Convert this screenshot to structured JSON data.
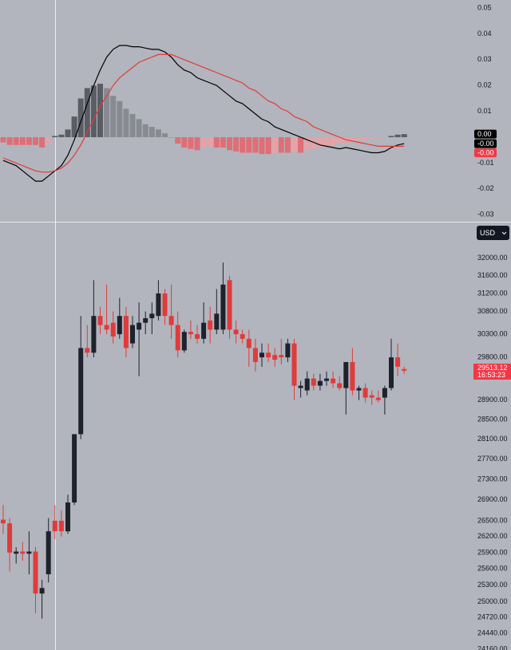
{
  "chart_data": [
    {
      "type": "macd",
      "ylim": [
        -0.0327,
        0.0531
      ],
      "yticks": [
        0.05,
        0.04,
        0.03,
        0.02,
        0.01,
        -0.01,
        -0.02,
        -0.03
      ],
      "histogram": {
        "values": [
          -0.002,
          -0.003,
          -0.003,
          -0.003,
          -0.003,
          -0.003,
          -0.004,
          -0.002,
          0.0005,
          0.001,
          0.003,
          0.008,
          0.015,
          0.019,
          0.02,
          0.0207,
          0.019,
          0.016,
          0.014,
          0.011,
          0.009,
          0.007,
          0.005,
          0.004,
          0.003,
          0.0015,
          0,
          -0.0025,
          -0.004,
          -0.0045,
          -0.005,
          -0.004,
          -0.0035,
          -0.004,
          -0.004,
          -0.005,
          -0.0055,
          -0.006,
          -0.006,
          -0.006,
          -0.0065,
          -0.0065,
          -0.006,
          -0.006,
          -0.006,
          -0.0055,
          -0.006,
          -0.005,
          -0.0045,
          -0.004,
          -0.0035,
          -0.003,
          -0.0025,
          -0.002,
          -0.0015,
          -0.0012,
          -0.001,
          -0.0008,
          -0.0005,
          -0.0003,
          0.0005,
          0.001,
          0.0012
        ],
        "colors": {
          "rising_above": "#5a5d64",
          "falling_above": "#878a91",
          "falling_below": "#df6e77",
          "rising_below": "#e6a2a7"
        }
      },
      "series": [
        {
          "color": "#000000",
          "values": [
            -0.009,
            -0.01,
            -0.011,
            -0.013,
            -0.015,
            -0.017,
            -0.017,
            -0.015,
            -0.013,
            -0.011,
            -0.007,
            -0.001,
            0.006,
            0.013,
            0.02,
            0.026,
            0.031,
            0.034,
            0.0355,
            0.0355,
            0.035,
            0.035,
            0.0345,
            0.034,
            0.034,
            0.033,
            0.031,
            0.028,
            0.026,
            0.025,
            0.023,
            0.022,
            0.021,
            0.02,
            0.018,
            0.016,
            0.014,
            0.013,
            0.011,
            0.009,
            0.007,
            0.006,
            0.004,
            0.003,
            0.002,
            0.001,
            0,
            -0.001,
            -0.002,
            -0.003,
            -0.0035,
            -0.004,
            -0.0045,
            -0.004,
            -0.0045,
            -0.005,
            -0.0055,
            -0.006,
            -0.006,
            -0.0055,
            -0.004,
            -0.003,
            -0.0025
          ]
        },
        {
          "color": "#e53935",
          "values": [
            -0.008,
            -0.009,
            -0.01,
            -0.011,
            -0.012,
            -0.013,
            -0.0135,
            -0.0135,
            -0.013,
            -0.012,
            -0.01,
            -0.007,
            -0.003,
            0.002,
            0.007,
            0.012,
            0.016,
            0.02,
            0.023,
            0.025,
            0.027,
            0.029,
            0.03,
            0.031,
            0.032,
            0.032,
            0.032,
            0.031,
            0.03,
            0.029,
            0.028,
            0.027,
            0.026,
            0.025,
            0.024,
            0.023,
            0.022,
            0.021,
            0.019,
            0.018,
            0.016,
            0.014,
            0.013,
            0.011,
            0.01,
            0.008,
            0.007,
            0.006,
            0.004,
            0.003,
            0.002,
            0.001,
            0,
            -0.001,
            -0.0015,
            -0.002,
            -0.0025,
            -0.003,
            -0.0035,
            -0.0035,
            -0.0035,
            -0.0035,
            -0.0035
          ]
        }
      ],
      "last_values": [
        {
          "value": 0.0012,
          "label": "0.00",
          "color": "#000000"
        },
        {
          "value": -0.0025,
          "label": "-0.00",
          "color": "#000000"
        },
        {
          "value": -0.0035,
          "label": "-0.00",
          "color": "#f23645"
        }
      ]
    },
    {
      "type": "candlestick",
      "log_scale": true,
      "ylim": [
        24150,
        32850
      ],
      "yticks": [
        {
          "value": 32000,
          "label": "32000.00"
        },
        {
          "value": 31600,
          "label": "31600.00"
        },
        {
          "value": 31200,
          "label": "31200.00"
        },
        {
          "value": 30800,
          "label": "30800.00"
        },
        {
          "value": 30300,
          "label": "30300.00"
        },
        {
          "value": 29800,
          "label": "29800.00"
        },
        {
          "value": 28900,
          "label": "28900.00"
        },
        {
          "value": 28500,
          "label": "28500.00"
        },
        {
          "value": 28100,
          "label": "28100.00"
        },
        {
          "value": 27700,
          "label": "27700.00"
        },
        {
          "value": 27300,
          "label": "27300.00"
        },
        {
          "value": 26900,
          "label": "26900.00"
        },
        {
          "value": 26500,
          "label": "26500.00"
        },
        {
          "value": 26200,
          "label": "26200.00"
        },
        {
          "value": 25900,
          "label": "25900.00"
        },
        {
          "value": 25600,
          "label": "25600.00"
        },
        {
          "value": 25300,
          "label": "25300.00"
        },
        {
          "value": 25000,
          "label": "25000.00"
        },
        {
          "value": 24720,
          "label": "24720.00"
        },
        {
          "value": 24440,
          "label": "24440.00"
        },
        {
          "value": 24160,
          "label": "24160.00"
        }
      ],
      "up_color": "#1e222d",
      "down_color": "#e03b3b",
      "open": [
        26520,
        26450,
        25880,
        25920,
        25880,
        25920,
        25150,
        25500,
        26500,
        26500,
        26300,
        26850,
        28200,
        30000,
        29900,
        30700,
        30500,
        30550,
        30300,
        30700,
        30100,
        30400,
        30550,
        30650,
        30700,
        31200,
        30700,
        30500,
        29950,
        30350,
        30300,
        30200,
        30600,
        30400,
        30400,
        31500,
        30400,
        30300,
        30200,
        30000,
        29800,
        29900,
        29850,
        29850,
        29800,
        30100,
        29150,
        29100,
        29350,
        29200,
        29300,
        29350,
        29250,
        29150,
        29700,
        29100,
        29150,
        29000,
        28950,
        28950,
        29150,
        29800,
        29550
      ],
      "high": [
        26800,
        26550,
        26000,
        26100,
        26300,
        26000,
        25400,
        26550,
        26800,
        26700,
        27000,
        28200,
        30700,
        30500,
        31500,
        30900,
        31400,
        30800,
        31100,
        30900,
        30700,
        31000,
        30800,
        31000,
        31500,
        31300,
        31400,
        30800,
        30400,
        30600,
        30500,
        31000,
        30900,
        31300,
        31900,
        31600,
        30600,
        30400,
        30400,
        30200,
        30100,
        30100,
        30000,
        30200,
        30200,
        30200,
        29300,
        29500,
        29450,
        29450,
        29500,
        29500,
        29400,
        29700,
        30000,
        29200,
        29250,
        29100,
        29100,
        29200,
        30200,
        30100,
        29600
      ],
      "low": [
        26250,
        25550,
        25700,
        25750,
        25500,
        24800,
        24700,
        25350,
        26150,
        26200,
        26250,
        26800,
        28100,
        29800,
        29800,
        30300,
        30300,
        30100,
        30200,
        29800,
        30000,
        29400,
        30300,
        30300,
        30600,
        30500,
        30200,
        29800,
        29900,
        30200,
        30100,
        30100,
        30100,
        30300,
        30300,
        30200,
        30100,
        30100,
        29600,
        29500,
        29600,
        29700,
        29600,
        29650,
        29700,
        28900,
        28950,
        29000,
        29100,
        29100,
        29200,
        29150,
        29100,
        28600,
        29000,
        28900,
        28850,
        28800,
        28850,
        28600,
        29100,
        29400,
        29450
      ],
      "close": [
        26450,
        25900,
        25920,
        25880,
        25920,
        25150,
        25250,
        26300,
        26300,
        26300,
        26850,
        28200,
        30000,
        29900,
        30700,
        30500,
        30400,
        30250,
        30700,
        30000,
        30500,
        30550,
        30650,
        30750,
        31200,
        30700,
        30500,
        29950,
        30350,
        30300,
        30200,
        30550,
        30400,
        30750,
        31400,
        30400,
        30300,
        30200,
        30000,
        29700,
        29900,
        29800,
        29750,
        29800,
        30100,
        29200,
        29200,
        29350,
        29200,
        29300,
        29350,
        29250,
        29150,
        29700,
        29100,
        29150,
        28950,
        28950,
        28900,
        29150,
        29800,
        29600,
        29513.12
      ],
      "last_price": 29513.12,
      "countdown": "16:53:23",
      "currency": "USD"
    }
  ]
}
